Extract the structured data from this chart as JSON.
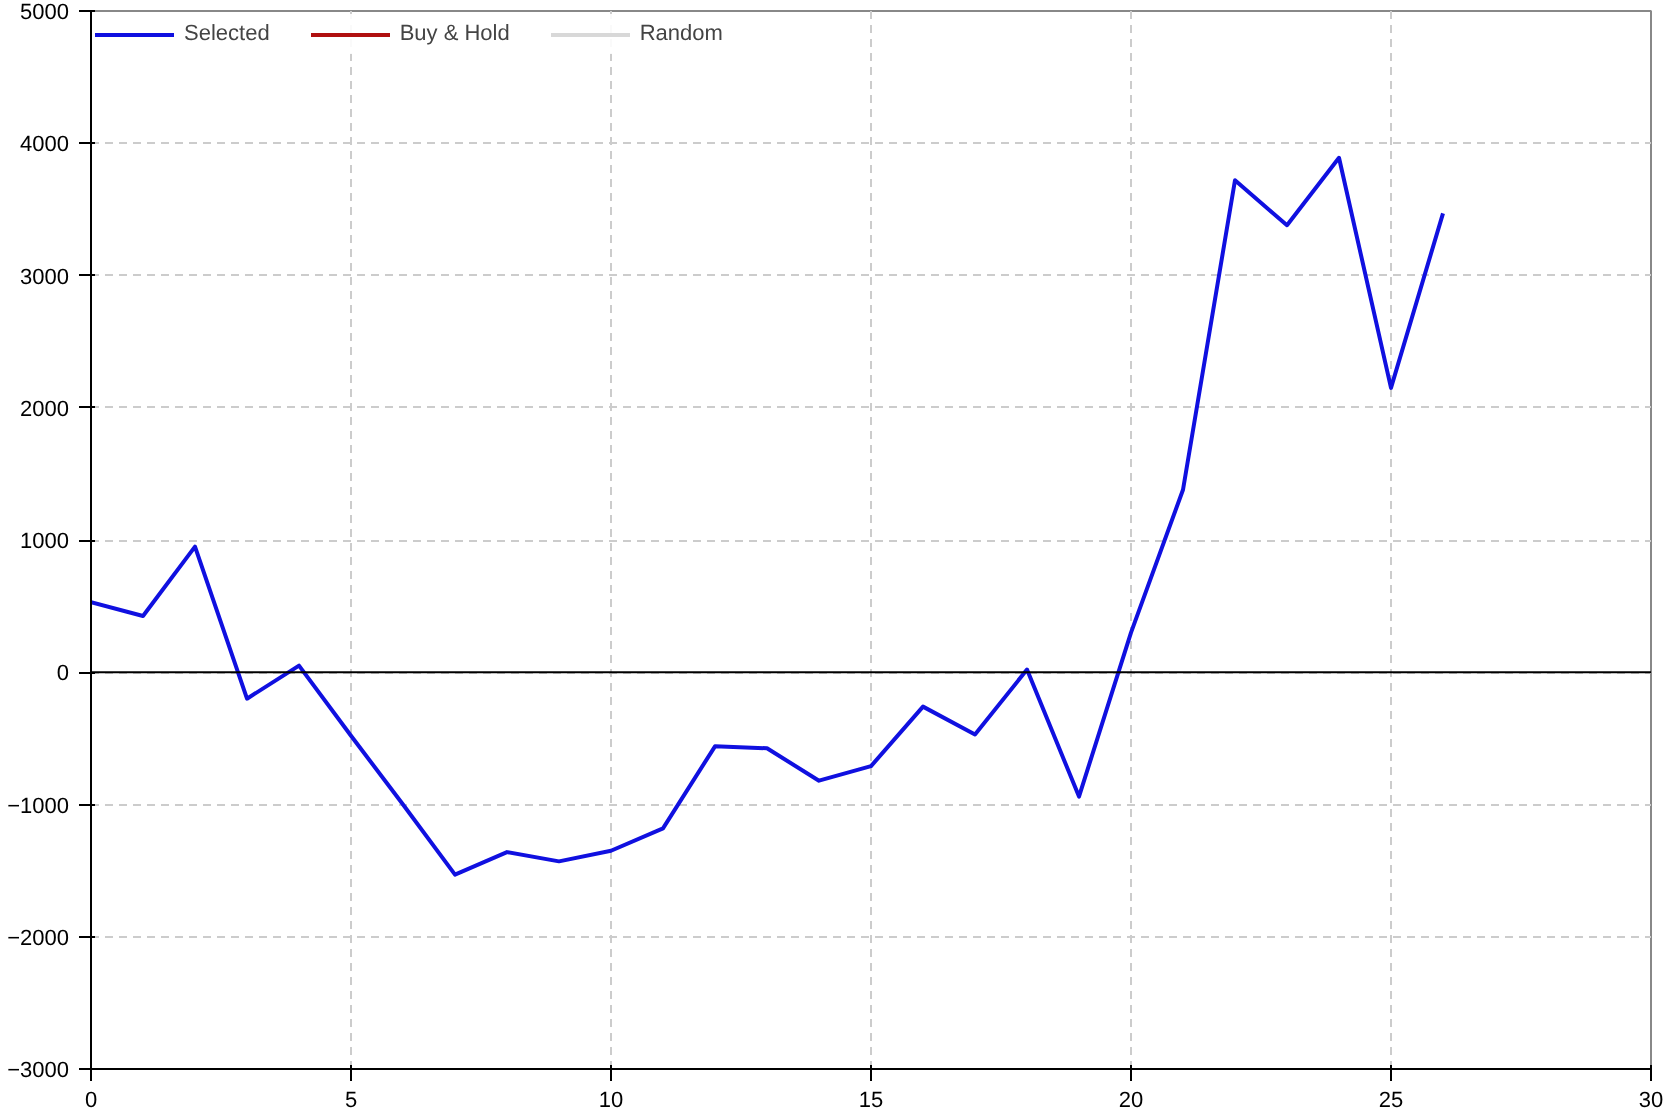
{
  "chart_data": {
    "type": "line",
    "x": [
      0,
      1,
      2,
      3,
      4,
      5,
      6,
      7,
      8,
      9,
      10,
      11,
      12,
      13,
      14,
      15,
      16,
      17,
      18,
      19,
      20,
      21,
      22,
      23,
      24,
      25,
      26
    ],
    "series": [
      {
        "name": "Selected",
        "color": "#1010e0",
        "values": [
          530,
          425,
          950,
          -200,
          50,
          -480,
          -1000,
          -1530,
          -1360,
          -1430,
          -1350,
          -1180,
          -560,
          -575,
          -820,
          -710,
          -260,
          -470,
          20,
          -940,
          300,
          1380,
          3720,
          3380,
          3890,
          2150,
          3470
        ]
      },
      {
        "name": "Buy & Hold",
        "color": "#b01010",
        "values": [
          null,
          null,
          null,
          null,
          null,
          null,
          null,
          null,
          null,
          null,
          null,
          null,
          null,
          null,
          null,
          null,
          null,
          null,
          null,
          null,
          null,
          null,
          null,
          null,
          null,
          null,
          null
        ]
      },
      {
        "name": "Random",
        "color": "#d8d8d8",
        "values": [
          null,
          null,
          null,
          null,
          null,
          null,
          null,
          null,
          null,
          null,
          null,
          null,
          null,
          null,
          null,
          null,
          null,
          null,
          null,
          null,
          null,
          null,
          null,
          null,
          null,
          null,
          null
        ]
      }
    ],
    "xlim": [
      0,
      30
    ],
    "xticks": [
      0,
      5,
      10,
      15,
      20,
      25,
      30
    ],
    "ylim": [
      -3000,
      5000
    ],
    "yticks": [
      -3000,
      -2000,
      -1000,
      0,
      1000,
      2000,
      3000,
      4000,
      5000
    ],
    "ref_lines": [
      {
        "axis": "y",
        "value": 0,
        "label": null,
        "color": "#000000"
      }
    ],
    "grid": true,
    "legend": "top left",
    "line_style": "solid",
    "marker": "none"
  }
}
